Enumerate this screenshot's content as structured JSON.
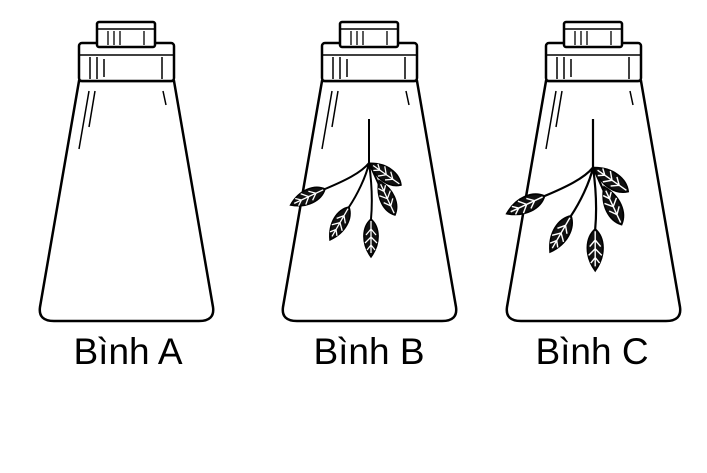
{
  "flasks": [
    {
      "label": "Bình A",
      "has_plant": false
    },
    {
      "label": "Bình B",
      "has_plant": true
    },
    {
      "label": "Bình C",
      "has_plant": true
    }
  ],
  "colors": {
    "stroke": "#000000",
    "background": "#ffffff",
    "leaf": "#111111"
  }
}
